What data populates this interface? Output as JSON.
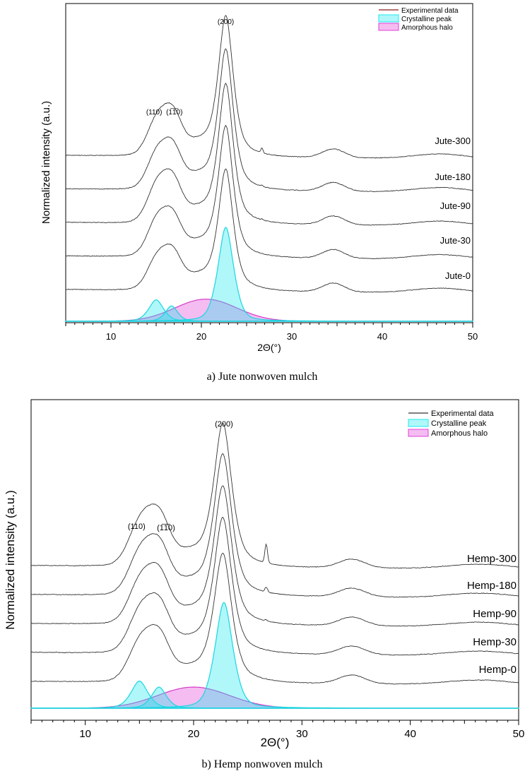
{
  "chart_data": [
    {
      "type": "line",
      "panel_id": "jute",
      "xlabel": "2Θ(°)",
      "ylabel": "Normalized intensity (a.u.)",
      "xlim": [
        5,
        50
      ],
      "xticks": [
        10,
        20,
        30,
        40,
        50
      ],
      "caption": "a)    Jute nonwoven mulch",
      "legend": {
        "placement": "top-right",
        "entries": [
          {
            "label": "Experimental data",
            "kind": "line",
            "color": "#8b1a1a"
          },
          {
            "label": "Crystalline peak",
            "kind": "fill",
            "color": "#1ee8ee"
          },
          {
            "label": "Amorphous halo",
            "kind": "fill",
            "color": "#e040d8"
          }
        ]
      },
      "peak_labels": [
        {
          "text": "(110)",
          "x": 15.4
        },
        {
          "text": "(1̅1̅0)",
          "x": 16.7
        },
        {
          "text": "(200)",
          "x": 22.7
        }
      ],
      "series": [
        {
          "name": "Jute-300",
          "offset": 4,
          "amp200": 1.35,
          "amp110": 0.36,
          "amp1m10": 0.3,
          "sharp26": 0.05
        },
        {
          "name": "Jute-180",
          "offset": 3,
          "amp200": 1.35,
          "amp110": 0.36,
          "amp1m10": 0.29,
          "sharp26": 0.01
        },
        {
          "name": "Jute-90",
          "offset": 2,
          "amp200": 1.34,
          "amp110": 0.38,
          "amp1m10": 0.3,
          "sharp26": 0.01
        },
        {
          "name": "Jute-30",
          "offset": 1,
          "amp200": 1.25,
          "amp110": 0.36,
          "amp1m10": 0.27,
          "sharp26": 0.0
        },
        {
          "name": "Jute-0",
          "offset": 0,
          "amp200": 1.15,
          "amp110": 0.31,
          "amp1m10": 0.25,
          "sharp26": 0.0
        }
      ],
      "fit": {
        "crystalline": [
          {
            "center": 15.0,
            "width": 0.9,
            "height": 0.32
          },
          {
            "center": 16.7,
            "width": 0.75,
            "height": 0.23
          },
          {
            "center": 22.7,
            "width": 0.95,
            "height": 1.4
          }
        ],
        "amorphous": {
          "center": 20.5,
          "width": 3.4,
          "height": 0.33
        }
      }
    },
    {
      "type": "line",
      "panel_id": "hemp",
      "xlabel": "2Θ(°)",
      "ylabel": "Normalized intensity (a.u.)",
      "xlim": [
        5,
        50
      ],
      "xticks": [
        10,
        20,
        30,
        40,
        50
      ],
      "caption": "b)    Hemp nonwoven mulch",
      "legend": {
        "placement": "top-right",
        "entries": [
          {
            "label": "Experimental data",
            "kind": "line",
            "color": "#333333"
          },
          {
            "label": "Crystalline peak",
            "kind": "fill",
            "color": "#1ee8ee"
          },
          {
            "label": "Amorphous halo",
            "kind": "fill",
            "color": "#e040d8"
          }
        ]
      },
      "peak_labels": [
        {
          "text": "(110)",
          "x": 15.0
        },
        {
          "text": "(1̅1̅0)",
          "x": 16.8
        },
        {
          "text": "(200)",
          "x": 22.8
        }
      ],
      "series": [
        {
          "name": "Hemp-300",
          "offset": 4,
          "amp200": 1.4,
          "amp110": 0.45,
          "amp1m10": 0.36,
          "sharp26": 0.2
        },
        {
          "name": "Hemp-180",
          "offset": 3,
          "amp200": 1.38,
          "amp110": 0.44,
          "amp1m10": 0.36,
          "sharp26": 0.05
        },
        {
          "name": "Hemp-90",
          "offset": 2,
          "amp200": 1.35,
          "amp110": 0.44,
          "amp1m10": 0.36,
          "sharp26": 0.01
        },
        {
          "name": "Hemp-30",
          "offset": 1,
          "amp200": 1.32,
          "amp110": 0.43,
          "amp1m10": 0.35,
          "sharp26": 0.0
        },
        {
          "name": "Hemp-0",
          "offset": 0,
          "amp200": 1.25,
          "amp110": 0.41,
          "amp1m10": 0.33,
          "sharp26": 0.0
        }
      ],
      "fit": {
        "crystalline": [
          {
            "center": 15.0,
            "width": 0.85,
            "height": 0.36
          },
          {
            "center": 16.8,
            "width": 0.75,
            "height": 0.28
          },
          {
            "center": 22.8,
            "width": 0.9,
            "height": 1.4
          }
        ],
        "amorphous": {
          "center": 20.0,
          "width": 3.3,
          "height": 0.28
        }
      }
    }
  ]
}
